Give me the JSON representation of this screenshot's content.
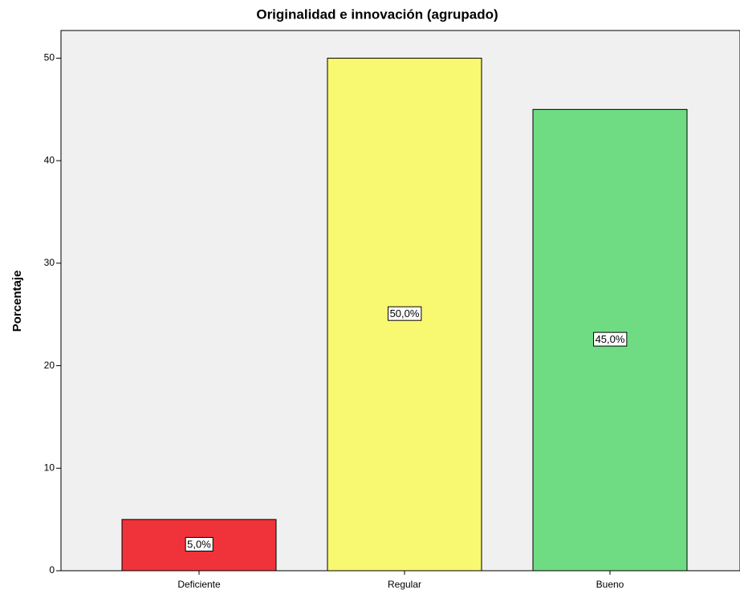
{
  "chart_data": {
    "type": "bar",
    "title": "Originalidad e innovación (agrupado)",
    "ylabel": "Porcentaje",
    "categories": [
      "Deficiente",
      "Regular",
      "Bueno"
    ],
    "values": [
      5,
      50,
      45
    ],
    "value_labels": [
      "5,0%",
      "50,0%",
      "45,0%"
    ],
    "colors": [
      "#f0333a",
      "#f9f871",
      "#6fdc83"
    ],
    "ylim": [
      0,
      52.7
    ],
    "yticks": [
      0,
      10,
      20,
      30,
      40,
      50
    ]
  }
}
